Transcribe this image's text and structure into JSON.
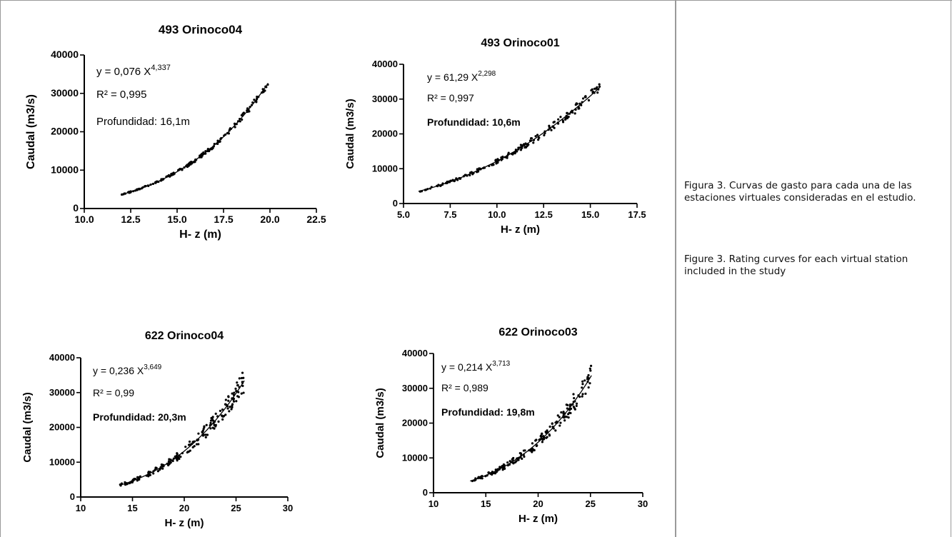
{
  "captions": {
    "es": "Figura 3. Curvas de gasto para cada una de las estaciones virtuales consideradas en el estudio.",
    "en": "Figure 3. Rating curves for each virtual station included in the study"
  },
  "chart_data": [
    {
      "type": "scatter",
      "title": "493 Orinoco04",
      "xlabel": "H- z (m)",
      "ylabel": "Caudal (m3/s)",
      "xlim": [
        10,
        22.5
      ],
      "ylim": [
        0,
        40000
      ],
      "xticks": [
        "10.0",
        "12.5",
        "15.0",
        "17.5",
        "20.0",
        "22.5"
      ],
      "yticks": [
        "0",
        "10000",
        "20000",
        "30000",
        "40000"
      ],
      "equation": {
        "prefix": "y = 0,076 X",
        "exponent": "4,337"
      },
      "r2": "R² = 0,995",
      "depth": "Profundidad: 16,1m",
      "depth_bold": false,
      "fit": {
        "a": 0.076,
        "b": 4.337
      },
      "xrange": [
        12,
        19.9
      ],
      "scatter_pct": 0.03,
      "grid": false
    },
    {
      "type": "scatter",
      "title": "493 Orinoco01",
      "xlabel": "H- z (m)",
      "ylabel": "Caudal (m3/s)",
      "xlim": [
        5,
        17.5
      ],
      "ylim": [
        0,
        40000
      ],
      "xticks": [
        "5.0",
        "7.5",
        "10.0",
        "12.5",
        "15.0",
        "17.5"
      ],
      "yticks": [
        "0",
        "10000",
        "20000",
        "30000",
        "40000"
      ],
      "equation": {
        "prefix": "y = 61,29 X",
        "exponent": "2,298"
      },
      "r2": "R² = 0,997",
      "depth": "Profundidad: 10,6m",
      "depth_bold": true,
      "fit": {
        "a": 61.29,
        "b": 2.298
      },
      "xrange": [
        5.8,
        15.5
      ],
      "scatter_pct": 0.05,
      "grid": false
    },
    {
      "type": "scatter",
      "title": "622 Orinoco04",
      "xlabel": "H- z (m)",
      "ylabel": "Caudal (m3/s)",
      "xlim": [
        10,
        30
      ],
      "ylim": [
        0,
        40000
      ],
      "xticks": [
        "10",
        "15",
        "20",
        "25",
        "30"
      ],
      "yticks": [
        "0",
        "10000",
        "20000",
        "30000",
        "40000"
      ],
      "equation": {
        "prefix": "y = 0,236 X",
        "exponent": "3,649"
      },
      "r2": "R² = 0,99",
      "depth": "Profundidad:  20,3m",
      "depth_bold": true,
      "fit": {
        "a": 0.236,
        "b": 3.649
      },
      "xrange": [
        13.8,
        25.8
      ],
      "scatter_pct": 0.1,
      "grid": false
    },
    {
      "type": "scatter",
      "title": "622 Orinoco03",
      "xlabel": "H- z (m)",
      "ylabel": "Caudal (m3/s)",
      "xlim": [
        10,
        30
      ],
      "ylim": [
        0,
        40000
      ],
      "xticks": [
        "10",
        "15",
        "20",
        "25",
        "30"
      ],
      "yticks": [
        "0",
        "10000",
        "20000",
        "30000",
        "40000"
      ],
      "equation": {
        "prefix": "y = 0,214 X",
        "exponent": "3,713"
      },
      "r2": "R² = 0,989",
      "depth": "Profundidad: 19,8m",
      "depth_bold": true,
      "fit": {
        "a": 0.214,
        "b": 3.713
      },
      "xrange": [
        13.5,
        25.1
      ],
      "scatter_pct": 0.1,
      "grid": false
    }
  ]
}
